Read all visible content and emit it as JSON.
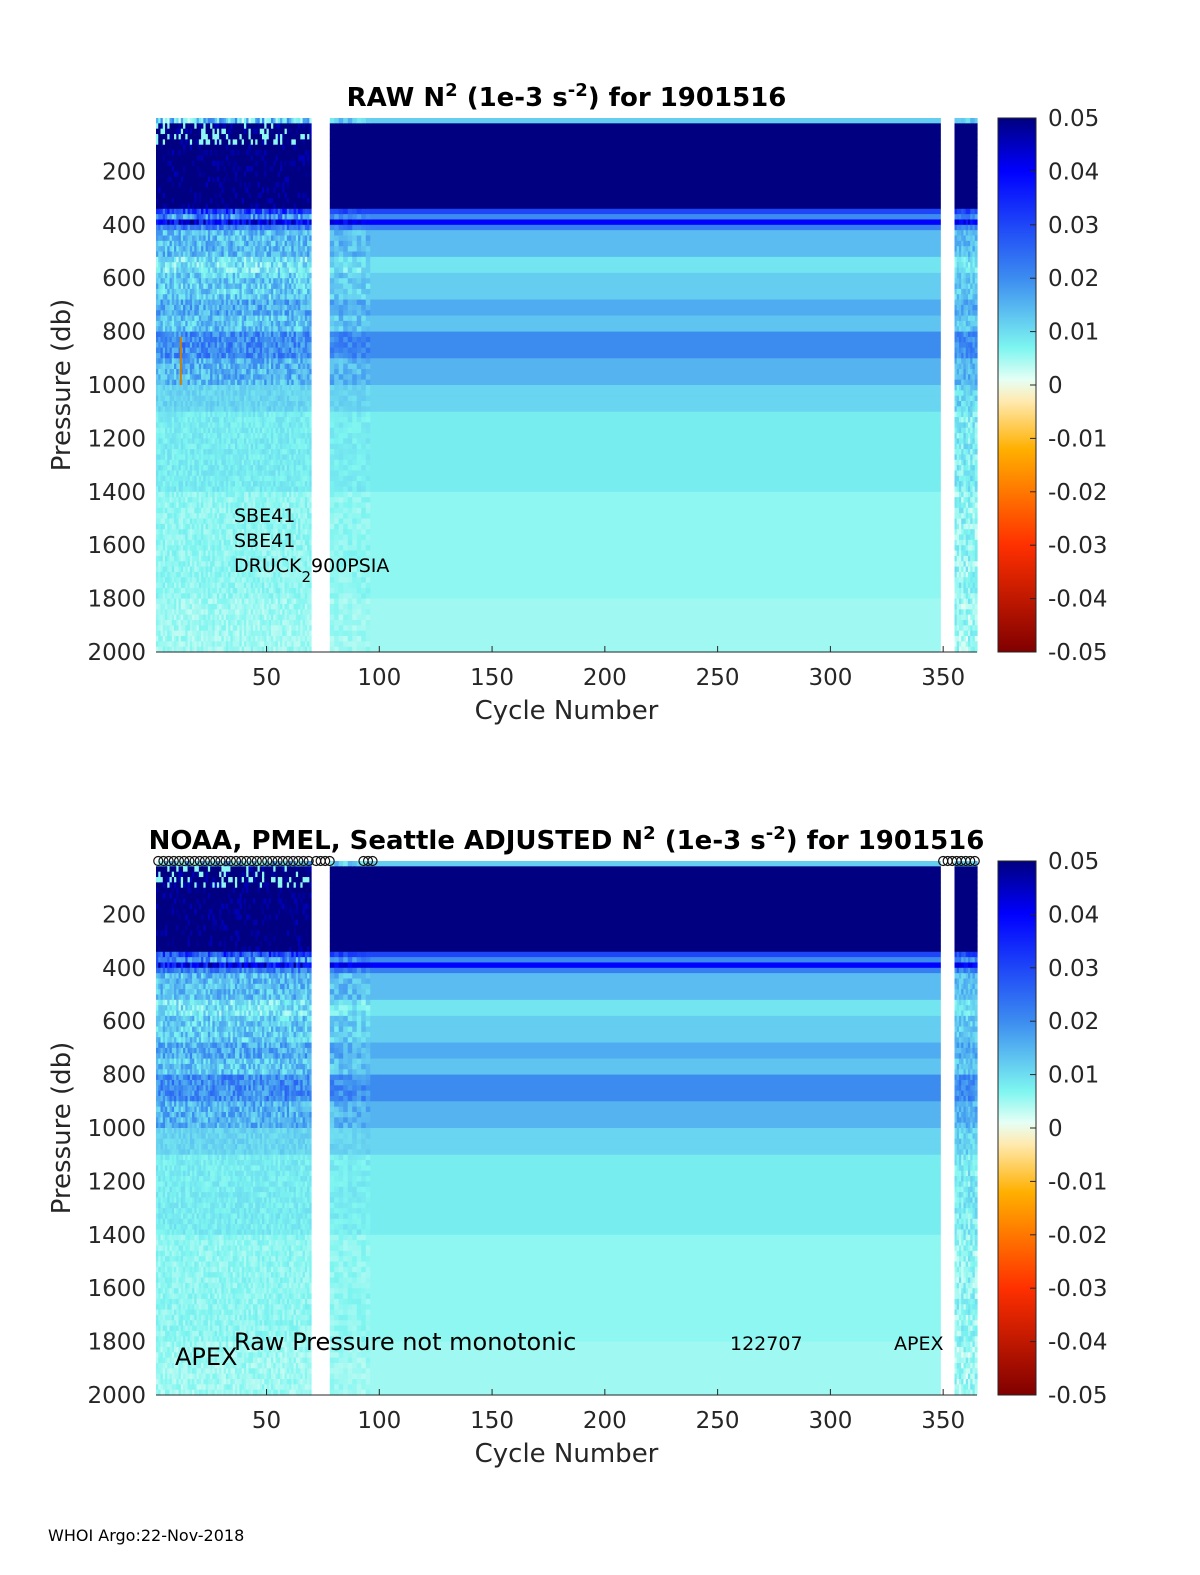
{
  "chart_data": [
    {
      "type": "heatmap",
      "title_prefix": "RAW N",
      "title_sup": "2",
      "title_mid": " (1e-3 s",
      "title_sup2": "-2",
      "title_suffix": ") for 1901516",
      "xlabel": "Cycle Number",
      "ylabel": "Pressure (db)",
      "xlim": [
        1,
        365
      ],
      "ylim": [
        0,
        2000
      ],
      "y_reversed": true,
      "xticks": [
        "50",
        "100",
        "150",
        "200",
        "250",
        "300",
        "350"
      ],
      "xtick_values": [
        50,
        100,
        150,
        200,
        250,
        300,
        350
      ],
      "yticks": [
        "200",
        "400",
        "600",
        "800",
        "1000",
        "1200",
        "1400",
        "1600",
        "1800",
        "2000"
      ],
      "ytick_values": [
        200,
        400,
        600,
        800,
        1000,
        1200,
        1400,
        1600,
        1800,
        2000
      ],
      "colorbar": {
        "range": [
          -0.05,
          0.05
        ],
        "ticks": [
          "0.05",
          "0.04",
          "0.03",
          "0.02",
          "0.01",
          "0",
          "-0.01",
          "-0.02",
          "-0.03",
          "-0.04",
          "-0.05"
        ],
        "tick_values": [
          0.05,
          0.04,
          0.03,
          0.02,
          0.01,
          0,
          -0.01,
          -0.02,
          -0.03,
          -0.04,
          -0.05
        ]
      },
      "gaps_cycles": [
        [
          70,
          78
        ],
        [
          349,
          355
        ]
      ],
      "annotations": {
        "sensor_line1": "SBE41",
        "sensor_line2": "SBE41",
        "sensor_line3_main": "DRUCK",
        "sensor_line3_sub": "2",
        "sensor_line3_tail": "900PSIA"
      }
    },
    {
      "type": "heatmap",
      "title_prefix": "NOAA, PMEL, Seattle  ADJUSTED N",
      "title_sup": "2",
      "title_mid": " (1e-3 s",
      "title_sup2": "-2",
      "title_suffix": ") for 1901516",
      "xlabel": "Cycle Number",
      "ylabel": "Pressure (db)",
      "xlim": [
        1,
        365
      ],
      "ylim": [
        0,
        2000
      ],
      "y_reversed": true,
      "xticks": [
        "50",
        "100",
        "150",
        "200",
        "250",
        "300",
        "350"
      ],
      "xtick_values": [
        50,
        100,
        150,
        200,
        250,
        300,
        350
      ],
      "yticks": [
        "200",
        "400",
        "600",
        "800",
        "1000",
        "1200",
        "1400",
        "1600",
        "1800",
        "2000"
      ],
      "ytick_values": [
        200,
        400,
        600,
        800,
        1000,
        1200,
        1400,
        1600,
        1800,
        2000
      ],
      "colorbar": {
        "range": [
          -0.05,
          0.05
        ],
        "ticks": [
          "0.05",
          "0.04",
          "0.03",
          "0.02",
          "0.01",
          "0",
          "-0.01",
          "-0.02",
          "-0.03",
          "-0.04",
          "-0.05"
        ],
        "tick_values": [
          0.05,
          0.04,
          0.03,
          0.02,
          0.01,
          0,
          -0.01,
          -0.02,
          -0.03,
          -0.04,
          -0.05
        ]
      },
      "gaps_cycles": [
        [
          70,
          78
        ],
        [
          349,
          355
        ]
      ],
      "annotations": {
        "float_type_left": "APEX",
        "qc_note": "Raw Pressure not monotonic",
        "serial": "122707",
        "float_type_right": "APEX"
      }
    }
  ],
  "footer": "WHOI Argo:22-Nov-2018"
}
